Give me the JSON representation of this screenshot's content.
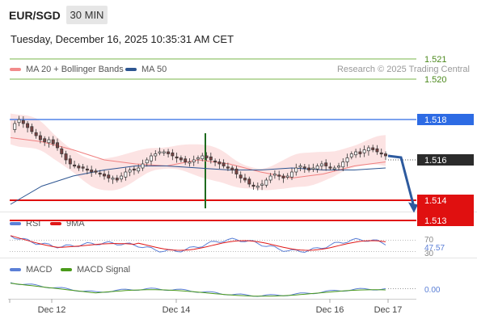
{
  "header": {
    "symbol": "EUR/SGD",
    "timeframe": "30 MIN"
  },
  "datetime": "Tuesday, December 16, 2025 10:35:31 AM CET",
  "legend": {
    "bb_label": "MA 20 + Bollinger Bands",
    "bb_color": "#f28b8b",
    "ma50_label": "MA 50",
    "ma50_color": "#2d5591",
    "credit": "Research © 2025 Trading Central"
  },
  "rsi_legend": {
    "rsi_label": "RSI",
    "rsi_color": "#5b7fd6",
    "ma_label": "9MA",
    "ma_color": "#e01818"
  },
  "macd_legend": {
    "macd_label": "MACD",
    "macd_color": "#5b7fd6",
    "signal_label": "MACD Signal",
    "signal_color": "#4a9a1a"
  },
  "price_levels": {
    "resistance": [
      {
        "label": "1.521",
        "value": 1.521,
        "color": "#7ab648"
      },
      {
        "label": "1.520",
        "value": 1.52,
        "color": "#7ab648"
      }
    ],
    "pivot": {
      "label": "1.518",
      "value": 1.518,
      "color": "#2d6be4"
    },
    "current": {
      "label": "1.516",
      "value": 1.516,
      "color": "#2b2b2b"
    },
    "support": [
      {
        "label": "1.514",
        "value": 1.514,
        "color": "#e01010"
      },
      {
        "label": "1.513",
        "value": 1.513,
        "color": "#e01010"
      }
    ]
  },
  "rsi_levels": {
    "upper": "70",
    "value": "47.57",
    "lower": "30"
  },
  "macd_level": "0.00",
  "chart_data": {
    "type": "candlestick",
    "timeframe": "30 MIN",
    "x_tick_labels": [
      "Dec 12",
      "Dec 14",
      "Dec 16",
      "Dec 17"
    ],
    "price_range": [
      1.5105,
      1.5225
    ],
    "close": [
      1.5175,
      1.5178,
      1.518,
      1.5178,
      1.5176,
      1.5174,
      1.5172,
      1.517,
      1.5169,
      1.517,
      1.5168,
      1.5166,
      1.5163,
      1.516,
      1.5158,
      1.5157,
      1.5156,
      1.5156,
      1.5155,
      1.5154,
      1.5154,
      1.5153,
      1.5152,
      1.5151,
      1.5151,
      1.515,
      1.5152,
      1.5154,
      1.5155,
      1.5155,
      1.5156,
      1.5158,
      1.516,
      1.5162,
      1.5163,
      1.5164,
      1.5164,
      1.5163,
      1.5162,
      1.5161,
      1.516,
      1.5159,
      1.5159,
      1.516,
      1.5161,
      1.5162,
      1.5161,
      1.516,
      1.5159,
      1.5158,
      1.5157,
      1.5156,
      1.5155,
      1.5153,
      1.5151,
      1.515,
      1.5148,
      1.5147,
      1.5147,
      1.5148,
      1.515,
      1.5152,
      1.5153,
      1.5152,
      1.5151,
      1.5152,
      1.5154,
      1.5156,
      1.5157,
      1.5156,
      1.5155,
      1.5156,
      1.5157,
      1.5158,
      1.5157,
      1.5156,
      1.5156,
      1.5157,
      1.5159,
      1.5161,
      1.5163,
      1.5164,
      1.5163,
      1.5165,
      1.5166,
      1.5165,
      1.5164,
      1.5163,
      1.5162
    ],
    "ma20_approx": [
      1.5171,
      1.5169,
      1.5165,
      1.516,
      1.5158,
      1.5157,
      1.516,
      1.5158,
      1.5154,
      1.5151,
      1.5153,
      1.5157,
      1.5159
    ],
    "ma50_approx": [
      1.5138,
      1.5147,
      1.5152,
      1.5155,
      1.5157,
      1.5157,
      1.5156,
      1.5155,
      1.5155,
      1.5156,
      1.5155,
      1.5155,
      1.5156
    ],
    "rsi": {
      "range": [
        30,
        70
      ],
      "last": 47.57
    },
    "macd": {
      "zero_label": "0.00"
    },
    "forecast": {
      "direction": "down",
      "target": 1.5135
    }
  }
}
